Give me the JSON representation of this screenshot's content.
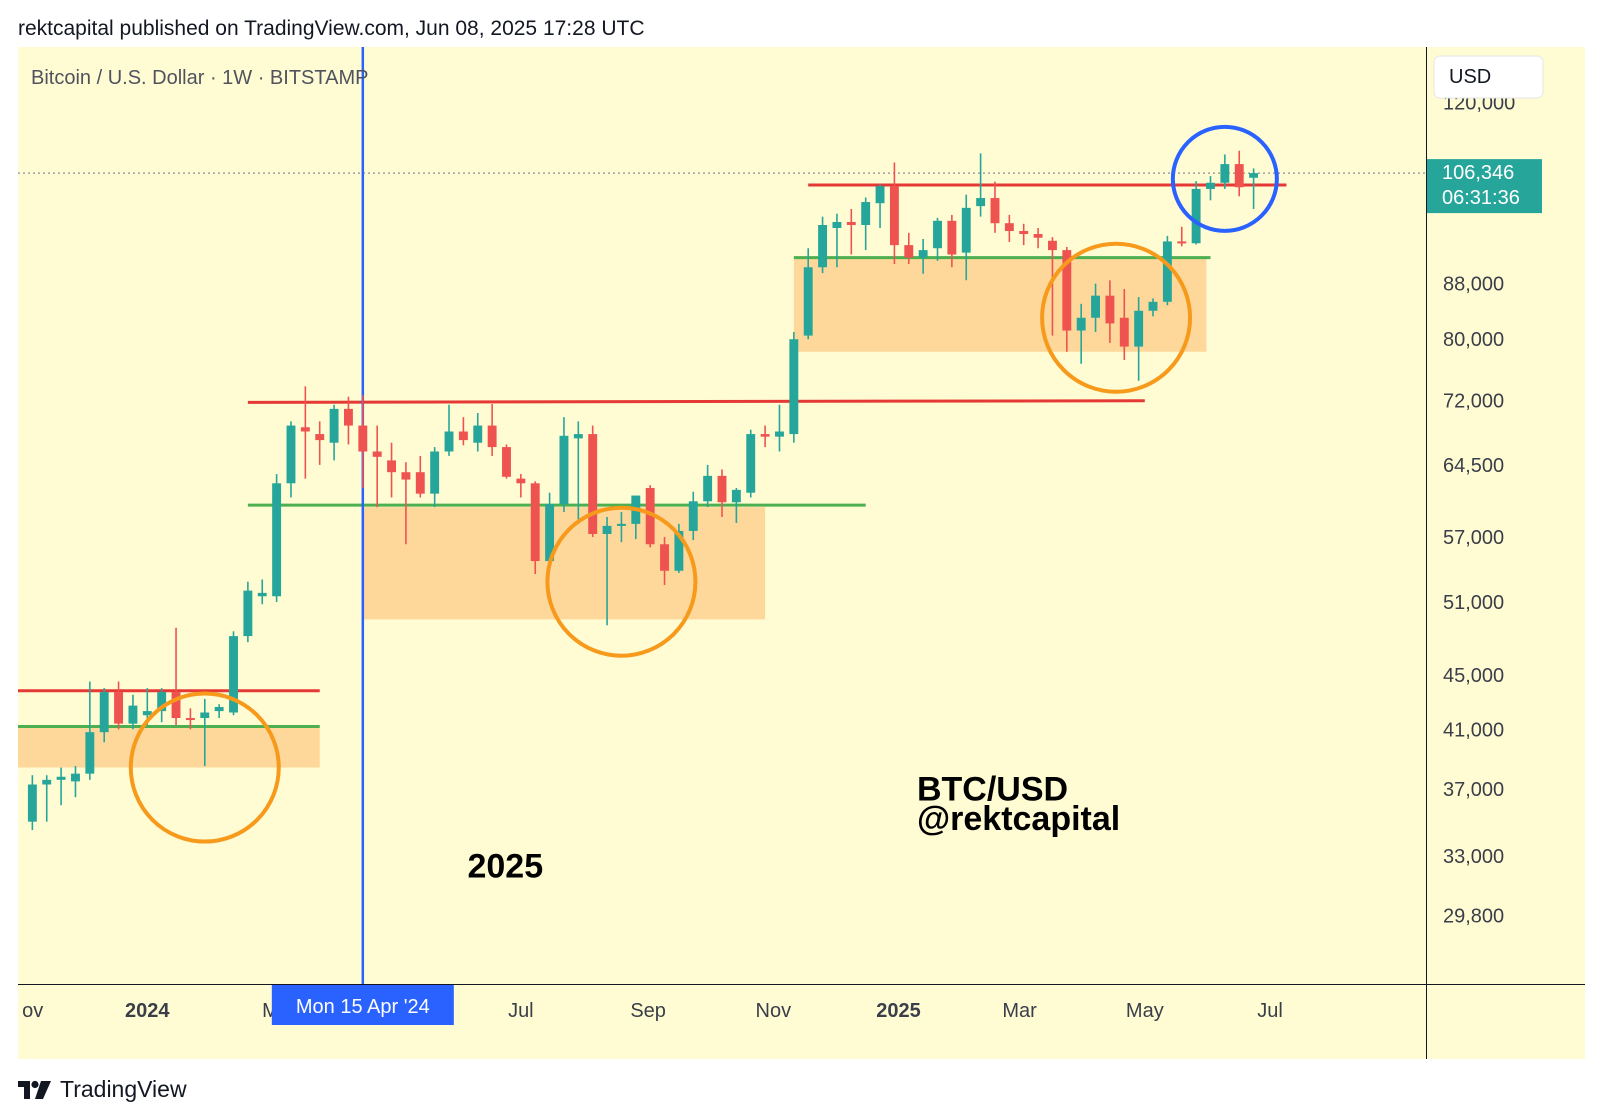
{
  "publisher_line": "rektcapital published on TradingView.com, Jun 08, 2025 17:28 UTC",
  "footer_brand": "TradingView",
  "colors": {
    "background": "#fffcd4",
    "bull": "#26a69a",
    "bear": "#ef5350",
    "resistance": "#e53935",
    "support": "#4caf50",
    "zone": "#fdd89a",
    "circle_orange": "#f79a1c",
    "circle_blue": "#2962ff",
    "crosshair": "#2962ff",
    "last_price_bg": "#26a69a"
  },
  "chart_data": {
    "type": "candlestick",
    "title": "Bitcoin / U.S. Dollar · 1W · BITSTAMP",
    "currency": "USD",
    "scale": "log",
    "ylim": [
      26500,
      132000
    ],
    "y_ticks": [
      "120,000",
      "88,000",
      "80,000",
      "72,000",
      "64,500",
      "57,000",
      "51,000",
      "45,000",
      "41,000",
      "37,000",
      "33,000",
      "29,800"
    ],
    "y_tick_values": [
      120000,
      88000,
      80000,
      72000,
      64500,
      57000,
      51000,
      45000,
      41000,
      37000,
      33000,
      29800
    ],
    "x_ticks": [
      {
        "label": "ov",
        "date": "2023-11-01",
        "bold": false
      },
      {
        "label": "2024",
        "date": "2024-01-01",
        "bold": true
      },
      {
        "label": "M",
        "date": "2024-03-01",
        "bold": false
      },
      {
        "label": "Jul",
        "date": "2024-07-01",
        "bold": false
      },
      {
        "label": "Sep",
        "date": "2024-09-01",
        "bold": false
      },
      {
        "label": "Nov",
        "date": "2024-11-01",
        "bold": false
      },
      {
        "label": "2025",
        "date": "2025-01-01",
        "bold": true
      },
      {
        "label": "Mar",
        "date": "2025-03-01",
        "bold": false
      },
      {
        "label": "May",
        "date": "2025-05-01",
        "bold": false
      },
      {
        "label": "Jul",
        "date": "2025-07-01",
        "bold": false
      }
    ],
    "x_range": [
      "2023-10-30",
      "2025-09-15"
    ],
    "crosshair_label": "Mon 15 Apr '24",
    "crosshair_date": "2024-04-15",
    "last_price": "106,346",
    "last_price_value": 106346,
    "countdown": "06:31:36",
    "candles": [
      {
        "date": "2023-11-06",
        "o": 35000,
        "h": 37900,
        "l": 34500,
        "c": 37300
      },
      {
        "date": "2023-11-13",
        "o": 37300,
        "h": 37900,
        "l": 35000,
        "c": 37600
      },
      {
        "date": "2023-11-20",
        "o": 37600,
        "h": 38400,
        "l": 36000,
        "c": 37800
      },
      {
        "date": "2023-11-27",
        "o": 37500,
        "h": 38500,
        "l": 36500,
        "c": 38000
      },
      {
        "date": "2023-12-04",
        "o": 38000,
        "h": 44500,
        "l": 37600,
        "c": 40800
      },
      {
        "date": "2023-12-11",
        "o": 40800,
        "h": 44000,
        "l": 40100,
        "c": 43700
      },
      {
        "date": "2023-12-18",
        "o": 43700,
        "h": 44500,
        "l": 41000,
        "c": 41400
      },
      {
        "date": "2023-12-25",
        "o": 41400,
        "h": 43500,
        "l": 41000,
        "c": 42700
      },
      {
        "date": "2024-01-01",
        "o": 42000,
        "h": 44000,
        "l": 41300,
        "c": 42300
      },
      {
        "date": "2024-01-08",
        "o": 42300,
        "h": 44000,
        "l": 41500,
        "c": 43700
      },
      {
        "date": "2024-01-15",
        "o": 43700,
        "h": 48800,
        "l": 41300,
        "c": 41800
      },
      {
        "date": "2024-01-22",
        "o": 41800,
        "h": 42500,
        "l": 41000,
        "c": 41700
      },
      {
        "date": "2024-01-29",
        "o": 41800,
        "h": 43200,
        "l": 38500,
        "c": 42200
      },
      {
        "date": "2024-02-05",
        "o": 42300,
        "h": 42800,
        "l": 41800,
        "c": 42600
      },
      {
        "date": "2024-02-12",
        "o": 42200,
        "h": 48500,
        "l": 42000,
        "c": 48100
      },
      {
        "date": "2024-02-19",
        "o": 48100,
        "h": 52800,
        "l": 47600,
        "c": 52000
      },
      {
        "date": "2024-02-26",
        "o": 51500,
        "h": 53000,
        "l": 50800,
        "c": 51800
      },
      {
        "date": "2024-03-04",
        "o": 51500,
        "h": 63500,
        "l": 51000,
        "c": 62500
      },
      {
        "date": "2024-03-11",
        "o": 62500,
        "h": 69500,
        "l": 61000,
        "c": 69000
      },
      {
        "date": "2024-03-18",
        "o": 68800,
        "h": 73800,
        "l": 63000,
        "c": 68300
      },
      {
        "date": "2024-03-25",
        "o": 68000,
        "h": 69500,
        "l": 64500,
        "c": 67300
      },
      {
        "date": "2024-04-01",
        "o": 67000,
        "h": 71500,
        "l": 65000,
        "c": 71000
      },
      {
        "date": "2024-04-08",
        "o": 71000,
        "h": 72500,
        "l": 66800,
        "c": 69000
      },
      {
        "date": "2024-04-15",
        "o": 69000,
        "h": 72700,
        "l": 62000,
        "c": 66000
      },
      {
        "date": "2024-04-22",
        "o": 66000,
        "h": 69000,
        "l": 60000,
        "c": 65400
      },
      {
        "date": "2024-04-29",
        "o": 65000,
        "h": 67000,
        "l": 61000,
        "c": 63700
      },
      {
        "date": "2024-05-06",
        "o": 63700,
        "h": 64800,
        "l": 56300,
        "c": 62900
      },
      {
        "date": "2024-05-13",
        "o": 63700,
        "h": 65500,
        "l": 61000,
        "c": 61400
      },
      {
        "date": "2024-05-20",
        "o": 61400,
        "h": 66500,
        "l": 60000,
        "c": 66000
      },
      {
        "date": "2024-05-27",
        "o": 66000,
        "h": 71500,
        "l": 65500,
        "c": 68300
      },
      {
        "date": "2024-06-03",
        "o": 68300,
        "h": 70000,
        "l": 66700,
        "c": 67300
      },
      {
        "date": "2024-06-10",
        "o": 67000,
        "h": 70500,
        "l": 66000,
        "c": 69000
      },
      {
        "date": "2024-06-17",
        "o": 69000,
        "h": 71600,
        "l": 65500,
        "c": 66500
      },
      {
        "date": "2024-06-24",
        "o": 66500,
        "h": 66800,
        "l": 63000,
        "c": 63200
      },
      {
        "date": "2024-07-01",
        "o": 63000,
        "h": 63500,
        "l": 61000,
        "c": 62500
      },
      {
        "date": "2024-07-08",
        "o": 62500,
        "h": 62700,
        "l": 53500,
        "c": 54700
      },
      {
        "date": "2024-07-15",
        "o": 54700,
        "h": 61500,
        "l": 54300,
        "c": 60300
      },
      {
        "date": "2024-07-22",
        "o": 60300,
        "h": 70000,
        "l": 59500,
        "c": 67800
      },
      {
        "date": "2024-07-29",
        "o": 67500,
        "h": 69500,
        "l": 58300,
        "c": 68000
      },
      {
        "date": "2024-08-05",
        "o": 68000,
        "h": 69000,
        "l": 57000,
        "c": 57300
      },
      {
        "date": "2024-08-12",
        "o": 57300,
        "h": 59000,
        "l": 49000,
        "c": 58100
      },
      {
        "date": "2024-08-19",
        "o": 58100,
        "h": 59500,
        "l": 56500,
        "c": 58300
      },
      {
        "date": "2024-08-26",
        "o": 58300,
        "h": 61000,
        "l": 56800,
        "c": 61200
      },
      {
        "date": "2024-09-02",
        "o": 62000,
        "h": 62300,
        "l": 56000,
        "c": 56300
      },
      {
        "date": "2024-09-09",
        "o": 56300,
        "h": 57000,
        "l": 52500,
        "c": 53800
      },
      {
        "date": "2024-09-16",
        "o": 53800,
        "h": 58300,
        "l": 53600,
        "c": 57600
      },
      {
        "date": "2024-09-23",
        "o": 57600,
        "h": 61600,
        "l": 56700,
        "c": 60600
      },
      {
        "date": "2024-09-30",
        "o": 60600,
        "h": 64500,
        "l": 60000,
        "c": 63300
      },
      {
        "date": "2024-10-07",
        "o": 63300,
        "h": 64000,
        "l": 59000,
        "c": 60500
      },
      {
        "date": "2024-10-14",
        "o": 60500,
        "h": 62000,
        "l": 58400,
        "c": 61800
      },
      {
        "date": "2024-10-21",
        "o": 61500,
        "h": 68500,
        "l": 61000,
        "c": 68000
      },
      {
        "date": "2024-10-28",
        "o": 68000,
        "h": 69000,
        "l": 66500,
        "c": 67700
      },
      {
        "date": "2024-11-04",
        "o": 67700,
        "h": 71500,
        "l": 66000,
        "c": 68300
      },
      {
        "date": "2024-11-11",
        "o": 68000,
        "h": 81000,
        "l": 67000,
        "c": 80000
      },
      {
        "date": "2024-11-18",
        "o": 80500,
        "h": 93500,
        "l": 80000,
        "c": 90500
      },
      {
        "date": "2024-11-25",
        "o": 90500,
        "h": 98700,
        "l": 89600,
        "c": 97300
      },
      {
        "date": "2024-12-02",
        "o": 96800,
        "h": 99200,
        "l": 90500,
        "c": 97800
      },
      {
        "date": "2024-12-09",
        "o": 97800,
        "h": 100000,
        "l": 92500,
        "c": 97300
      },
      {
        "date": "2024-12-16",
        "o": 97300,
        "h": 102000,
        "l": 93200,
        "c": 101200
      },
      {
        "date": "2024-12-23",
        "o": 101000,
        "h": 104300,
        "l": 96800,
        "c": 104000
      },
      {
        "date": "2024-12-30",
        "o": 104000,
        "h": 108300,
        "l": 91000,
        "c": 94000
      },
      {
        "date": "2025-01-06",
        "o": 94000,
        "h": 96000,
        "l": 91000,
        "c": 92000
      },
      {
        "date": "2025-01-13",
        "o": 92000,
        "h": 95000,
        "l": 89500,
        "c": 93200
      },
      {
        "date": "2025-01-20",
        "o": 93500,
        "h": 98500,
        "l": 91500,
        "c": 98000
      },
      {
        "date": "2025-01-27",
        "o": 98000,
        "h": 99000,
        "l": 90500,
        "c": 92500
      },
      {
        "date": "2025-02-03",
        "o": 92800,
        "h": 102500,
        "l": 88500,
        "c": 100200
      },
      {
        "date": "2025-02-10",
        "o": 100500,
        "h": 110000,
        "l": 98700,
        "c": 101900
      },
      {
        "date": "2025-02-17",
        "o": 101900,
        "h": 104800,
        "l": 96000,
        "c": 97600
      },
      {
        "date": "2025-02-24",
        "o": 97600,
        "h": 99000,
        "l": 94500,
        "c": 96300
      },
      {
        "date": "2025-03-03",
        "o": 96300,
        "h": 97500,
        "l": 94000,
        "c": 95800
      },
      {
        "date": "2025-03-10",
        "o": 95800,
        "h": 96800,
        "l": 93500,
        "c": 95200
      },
      {
        "date": "2025-03-17",
        "o": 94700,
        "h": 95300,
        "l": 80500,
        "c": 93200
      },
      {
        "date": "2025-03-24",
        "o": 93200,
        "h": 93700,
        "l": 78300,
        "c": 81200
      },
      {
        "date": "2025-03-31",
        "o": 81200,
        "h": 85000,
        "l": 76700,
        "c": 83000
      },
      {
        "date": "2025-04-07",
        "o": 83000,
        "h": 88000,
        "l": 81000,
        "c": 86200
      },
      {
        "date": "2025-04-14",
        "o": 86200,
        "h": 88500,
        "l": 79500,
        "c": 82200
      },
      {
        "date": "2025-04-21",
        "o": 83000,
        "h": 87200,
        "l": 77200,
        "c": 79000
      },
      {
        "date": "2025-04-28",
        "o": 79000,
        "h": 86000,
        "l": 74500,
        "c": 84000
      },
      {
        "date": "2025-05-05",
        "o": 84000,
        "h": 85800,
        "l": 83200,
        "c": 85300
      },
      {
        "date": "2025-05-12",
        "o": 85300,
        "h": 95500,
        "l": 84800,
        "c": 94600
      },
      {
        "date": "2025-05-19",
        "o": 94600,
        "h": 97000,
        "l": 93800,
        "c": 94400
      },
      {
        "date": "2025-05-26",
        "o": 94300,
        "h": 104900,
        "l": 94100,
        "c": 103500
      },
      {
        "date": "2025-06-02",
        "o": 103500,
        "h": 105800,
        "l": 101500,
        "c": 104600
      },
      {
        "date": "2025-06-09",
        "o": 104600,
        "h": 109800,
        "l": 103500,
        "c": 108000
      },
      {
        "date": "2025-06-16",
        "o": 108000,
        "h": 110500,
        "l": 102200,
        "c": 103800
      },
      {
        "date": "2025-06-23",
        "o": 105500,
        "h": 107200,
        "l": 100000,
        "c": 106346
      }
    ],
    "horizontal_levels": [
      {
        "name": "resistance-2024-q1",
        "kind": "resistance",
        "y": 43800,
        "from": "2023-10-30",
        "to": "2024-03-25"
      },
      {
        "name": "support-2024-q1",
        "kind": "support",
        "y": 41200,
        "from": "2023-10-30",
        "to": "2024-03-25"
      },
      {
        "name": "resistance-2024-range",
        "kind": "resistance",
        "y": 71800,
        "y_end": 72000,
        "from": "2024-02-19",
        "to": "2025-05-01"
      },
      {
        "name": "support-2024-range",
        "kind": "support",
        "y": 60200,
        "from": "2024-02-19",
        "to": "2024-12-16"
      },
      {
        "name": "resistance-2025-top",
        "kind": "resistance",
        "y": 104200,
        "from": "2024-11-18",
        "to": "2025-07-09"
      },
      {
        "name": "support-2025-range",
        "kind": "support",
        "y": 92000,
        "from": "2024-11-11",
        "to": "2025-06-02"
      }
    ],
    "zones": [
      {
        "name": "zone-2024-q1",
        "y_top": 41300,
        "y_bottom": 38400,
        "from": "2023-10-30",
        "to": "2024-03-25"
      },
      {
        "name": "zone-2024-mid",
        "y_top": 60000,
        "y_bottom": 49500,
        "from": "2024-04-15",
        "to": "2024-10-28"
      },
      {
        "name": "zone-2025",
        "y_top": 91800,
        "y_bottom": 78300,
        "from": "2024-11-11",
        "to": "2025-05-31"
      }
    ],
    "circles": [
      {
        "name": "circle-2024-q1",
        "color": "orange",
        "date": "2024-01-29",
        "y": 38400
      },
      {
        "name": "circle-2024-aug",
        "color": "orange",
        "date": "2024-08-19",
        "y": 52800
      },
      {
        "name": "circle-2025-apr",
        "color": "orange",
        "date": "2025-04-17",
        "y": 83000
      },
      {
        "name": "circle-2025-jun",
        "color": "blue",
        "date": "2025-06-09",
        "y": 105300
      }
    ],
    "annotations": [
      {
        "name": "label-2025",
        "text": "2025",
        "date": "2024-06-05",
        "y": 31800
      },
      {
        "name": "label-btcusd",
        "text": "BTC/USD",
        "date": "2025-01-10",
        "y": 36300
      },
      {
        "name": "label-handle",
        "text": "@rektcapital",
        "date": "2025-01-10",
        "y": 34500
      }
    ]
  }
}
